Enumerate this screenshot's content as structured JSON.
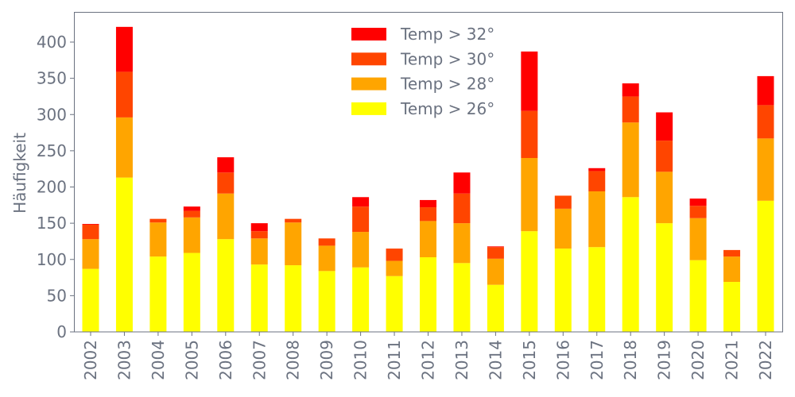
{
  "chart_data": {
    "type": "bar",
    "stacked": true,
    "title": "",
    "xlabel": "",
    "ylabel": "Häufigkeit",
    "ylim": [
      0,
      440
    ],
    "yticks": [
      0,
      50,
      100,
      150,
      200,
      250,
      300,
      350,
      400
    ],
    "grid": false,
    "legend_position": "top-center",
    "categories": [
      "2002",
      "2003",
      "2004",
      "2005",
      "2006",
      "2007",
      "2008",
      "2009",
      "2010",
      "2011",
      "2012",
      "2013",
      "2014",
      "2015",
      "2016",
      "2017",
      "2018",
      "2019",
      "2020",
      "2021",
      "2022"
    ],
    "series": [
      {
        "name": "Temp > 26°",
        "color": "#ffff00",
        "values": [
          87,
          213,
          104,
          109,
          128,
          93,
          92,
          84,
          89,
          77,
          103,
          95,
          65,
          139,
          115,
          117,
          186,
          150,
          99,
          69,
          181
        ]
      },
      {
        "name": "Temp > 28°",
        "color": "#ffa500",
        "values": [
          41,
          83,
          47,
          49,
          63,
          36,
          59,
          35,
          49,
          21,
          50,
          55,
          36,
          101,
          55,
          77,
          103,
          71,
          58,
          35,
          86
        ]
      },
      {
        "name": "Temp > 30°",
        "color": "#ff4500",
        "values": [
          20,
          63,
          5,
          9,
          29,
          10,
          5,
          10,
          35,
          17,
          19,
          41,
          16,
          65,
          18,
          28,
          36,
          43,
          17,
          9,
          46
        ]
      },
      {
        "name": "Temp > 32°",
        "color": "#ff0000",
        "values": [
          1,
          62,
          0,
          6,
          21,
          11,
          0,
          0,
          13,
          0,
          10,
          29,
          1,
          82,
          0,
          4,
          18,
          39,
          10,
          0,
          40
        ]
      }
    ]
  }
}
